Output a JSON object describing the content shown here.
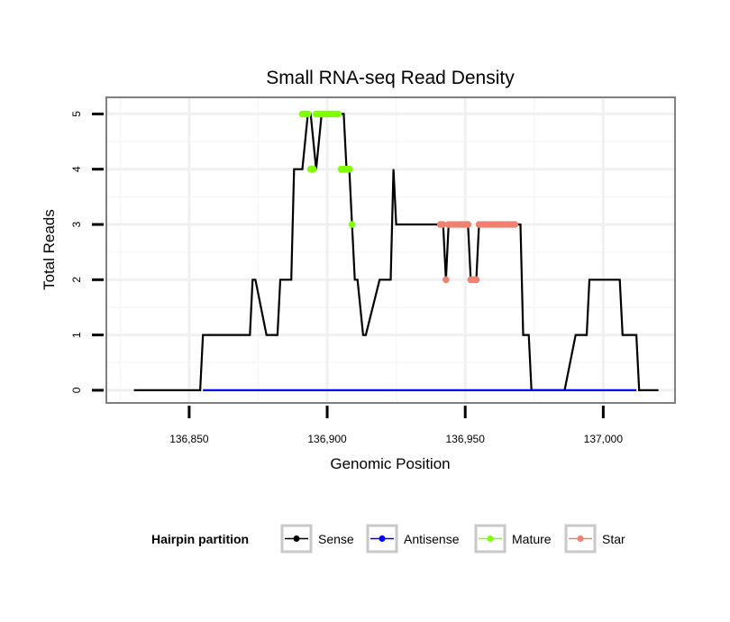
{
  "chart_data": {
    "type": "line",
    "title": "Small RNA-seq Read Density",
    "xlabel": "Genomic Position",
    "ylabel": "Total Reads",
    "xlim": [
      136820,
      137026
    ],
    "ylim": [
      -0.23,
      5.3
    ],
    "x_ticks": [
      136850,
      136900,
      136950,
      137000
    ],
    "x_tick_labels": [
      "136,850",
      "136,900",
      "136,950",
      "137,000"
    ],
    "y_ticks": [
      0,
      1,
      2,
      3,
      4,
      5
    ],
    "y_tick_labels": [
      "0",
      "1",
      "2",
      "3",
      "4",
      "5"
    ],
    "legend": {
      "title": "Hairpin partition",
      "position": "bottom",
      "entries": [
        "Sense",
        "Antisense",
        "Mature",
        "Star"
      ]
    },
    "series": [
      {
        "name": "Sense",
        "color": "#000000",
        "style": "line",
        "x": [
          136830,
          136854,
          136855,
          136872,
          136873,
          136874,
          136878,
          136879,
          136882,
          136883,
          136887,
          136888,
          136889,
          136891,
          136893,
          136894,
          136896,
          136898,
          136905,
          136906,
          136907,
          136908,
          136909,
          136910,
          136911,
          136913,
          136914,
          136919,
          136920,
          136923,
          136924,
          136925,
          136927,
          136942,
          136943,
          136944,
          136951,
          136952,
          136954,
          136955,
          136968,
          136969,
          136970,
          136971,
          136973,
          136974,
          136985,
          136986,
          136990,
          136991,
          136992,
          136994,
          136995,
          137001,
          137002,
          137006,
          137007,
          137012,
          137013,
          137020
        ],
        "y": [
          0,
          0,
          1,
          1,
          2,
          2,
          1,
          1,
          1,
          2,
          2,
          4,
          4,
          4,
          5,
          5,
          4,
          5,
          5,
          5,
          4,
          4,
          3,
          2,
          2,
          1,
          1,
          2,
          2,
          2,
          4,
          3,
          3,
          3,
          2,
          3,
          3,
          2,
          2,
          3,
          3,
          3,
          3,
          1,
          1,
          0,
          0,
          0,
          1,
          1,
          1,
          1,
          2,
          2,
          2,
          2,
          1,
          1,
          0,
          0
        ]
      },
      {
        "name": "Antisense",
        "color": "#0000ff",
        "style": "line",
        "x": [
          136855,
          137012
        ],
        "y": [
          0,
          0
        ]
      },
      {
        "name": "Mature",
        "color": "#7fff00",
        "style": "points",
        "x": [
          136891,
          136892,
          136893,
          136894,
          136895,
          136896,
          136897,
          136898,
          136899,
          136900,
          136901,
          136902,
          136903,
          136904,
          136905,
          136906,
          136907,
          136908,
          136909
        ],
        "y": [
          5,
          5,
          5,
          4,
          4,
          5,
          5,
          5,
          5,
          5,
          5,
          5,
          5,
          5,
          4,
          4,
          4,
          4,
          3
        ]
      },
      {
        "name": "Star",
        "color": "#f08070",
        "style": "points",
        "x": [
          136941,
          136942,
          136943,
          136944,
          136945,
          136946,
          136947,
          136948,
          136949,
          136950,
          136951,
          136952,
          136953,
          136954,
          136955,
          136956,
          136957,
          136958,
          136959,
          136960,
          136961,
          136962,
          136963,
          136964,
          136965,
          136966,
          136967,
          136968
        ],
        "y": [
          3,
          3,
          2,
          3,
          3,
          3,
          3,
          3,
          3,
          3,
          3,
          2,
          2,
          2,
          3,
          3,
          3,
          3,
          3,
          3,
          3,
          3,
          3,
          3,
          3,
          3,
          3,
          3
        ]
      }
    ]
  }
}
